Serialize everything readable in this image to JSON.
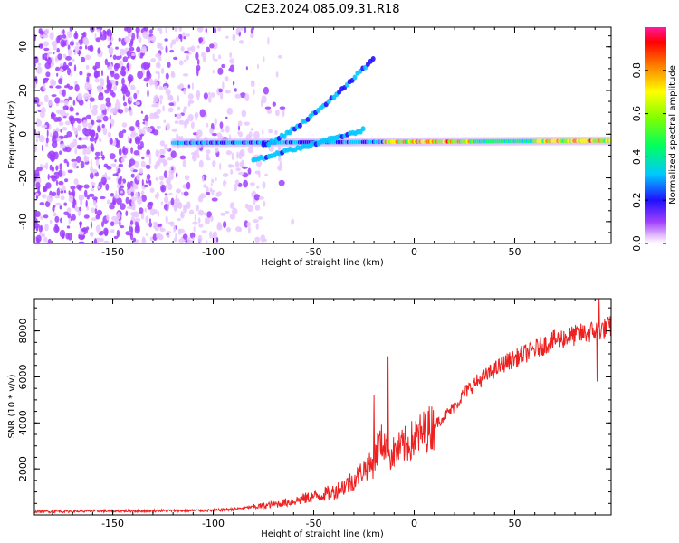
{
  "figure_title": "C2E3.2024.085.09.31.R18",
  "chart_data": [
    {
      "type": "heatmap",
      "title": "C2E3.2024.085.09.31.R18",
      "xlabel": "Height of straight line (km)",
      "ylabel": "Frequency (Hz)",
      "xlim": [
        -189,
        98
      ],
      "ylim": [
        -50,
        49
      ],
      "xticks": [
        -150,
        -100,
        -50,
        0,
        50
      ],
      "yticks": [
        -40,
        -20,
        0,
        20,
        40
      ],
      "colorbar": {
        "label": "Normalized spectral amplitude",
        "range": [
          0.0,
          1.0
        ],
        "ticks": [
          0.0,
          0.2,
          0.4,
          0.6,
          0.8
        ]
      },
      "description_features": {
        "noise_region_x": [
          -189,
          -80
        ],
        "main_ridge": {
          "x": [
            -120,
            98
          ],
          "freq_hz_start": -4,
          "freq_hz_end": -3
        },
        "upper_branch": {
          "x": [
            -75,
            -20
          ],
          "freq_hz_start": -5,
          "freq_hz_end": 35
        },
        "lower_branch": {
          "x": [
            -80,
            -25
          ],
          "freq_hz_start": -12,
          "freq_hz_end": 2
        },
        "peak_amplitude_region_x": [
          -15,
          98
        ]
      }
    },
    {
      "type": "line",
      "xlabel": "Height of straight line (km)",
      "ylabel": "SNR (10 * v/v)",
      "xlim": [
        -189,
        98
      ],
      "ylim": [
        0,
        9400
      ],
      "xticks": [
        -150,
        -100,
        -50,
        0,
        50
      ],
      "yticks": [
        2000,
        4000,
        6000,
        8000
      ],
      "color": "#ee2020",
      "series": [
        {
          "name": "SNR",
          "x": [
            -189,
            -170,
            -150,
            -130,
            -110,
            -100,
            -90,
            -80,
            -70,
            -60,
            -50,
            -40,
            -30,
            -25,
            -20,
            -18,
            -15,
            -12,
            -10,
            -5,
            0,
            5,
            10,
            15,
            20,
            25,
            30,
            35,
            40,
            45,
            50,
            55,
            60,
            65,
            70,
            75,
            80,
            85,
            90,
            95,
            98
          ],
          "values": [
            150,
            160,
            170,
            180,
            190,
            200,
            250,
            350,
            450,
            600,
            800,
            1000,
            1500,
            2000,
            2200,
            3000,
            3200,
            2600,
            2700,
            3000,
            3300,
            3600,
            3900,
            4300,
            4700,
            5300,
            5700,
            6000,
            6300,
            6600,
            6800,
            7000,
            7200,
            7400,
            7600,
            7700,
            7800,
            7900,
            8000,
            8100,
            8200
          ]
        }
      ],
      "spikes": [
        {
          "x": -20,
          "value": 5200
        },
        {
          "x": -13,
          "value": 6900
        },
        {
          "x": 92,
          "value": 9400
        },
        {
          "x": 91,
          "value": 5800
        }
      ]
    }
  ]
}
